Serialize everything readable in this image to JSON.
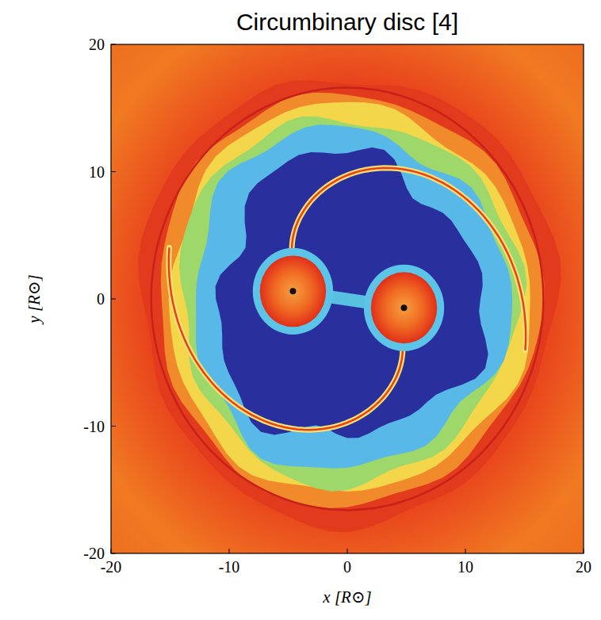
{
  "chart_data": {
    "type": "image",
    "title": "Circumbinary disc [4]",
    "x_label": "x [R⊙]",
    "y_label": "y [R⊙]",
    "x": [
      -4.6,
      4.8
    ],
    "values": [
      0.6,
      -0.7
    ],
    "xlim": [
      -20,
      20
    ],
    "ylim": [
      -20,
      20
    ],
    "xticks": [
      -20,
      -10,
      0,
      10,
      20
    ],
    "yticks": [
      -20,
      -10,
      0,
      10,
      20
    ]
  }
}
